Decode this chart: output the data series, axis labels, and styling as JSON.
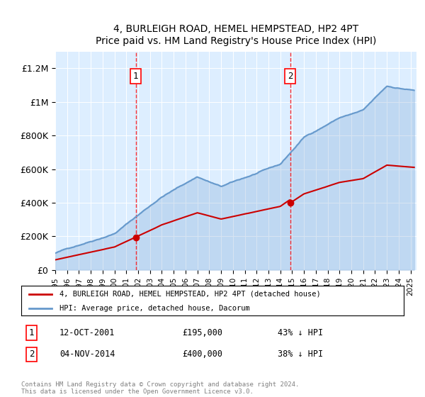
{
  "title": "4, BURLEIGH ROAD, HEMEL HEMPSTEAD, HP2 4PT",
  "subtitle": "Price paid vs. HM Land Registry's House Price Index (HPI)",
  "hpi_color": "#6699cc",
  "price_color": "#cc0000",
  "sale1_date": 2001.79,
  "sale1_price": 195000,
  "sale1_label": "1",
  "sale2_date": 2014.84,
  "sale2_price": 400000,
  "sale2_label": "2",
  "ylim": [
    0,
    1300000
  ],
  "xlim_start": 1995.0,
  "xlim_end": 2025.5,
  "legend_line1": "4, BURLEIGH ROAD, HEMEL HEMPSTEAD, HP2 4PT (detached house)",
  "legend_line2": "HPI: Average price, detached house, Dacorum",
  "footnote": "Contains HM Land Registry data © Crown copyright and database right 2024.\nThis data is licensed under the Open Government Licence v3.0.",
  "yticks": [
    0,
    200000,
    400000,
    600000,
    800000,
    1000000,
    1200000
  ],
  "ytick_labels": [
    "£0",
    "£200K",
    "£400K",
    "£600K",
    "£800K",
    "£1M",
    "£1.2M"
  ],
  "xticks": [
    1995,
    1996,
    1997,
    1998,
    1999,
    2000,
    2001,
    2002,
    2003,
    2004,
    2005,
    2006,
    2007,
    2008,
    2009,
    2010,
    2011,
    2012,
    2013,
    2014,
    2015,
    2016,
    2017,
    2018,
    2019,
    2020,
    2021,
    2022,
    2023,
    2024,
    2025
  ],
  "background_plot": "#ddeeff",
  "background_fig": "#ffffff"
}
